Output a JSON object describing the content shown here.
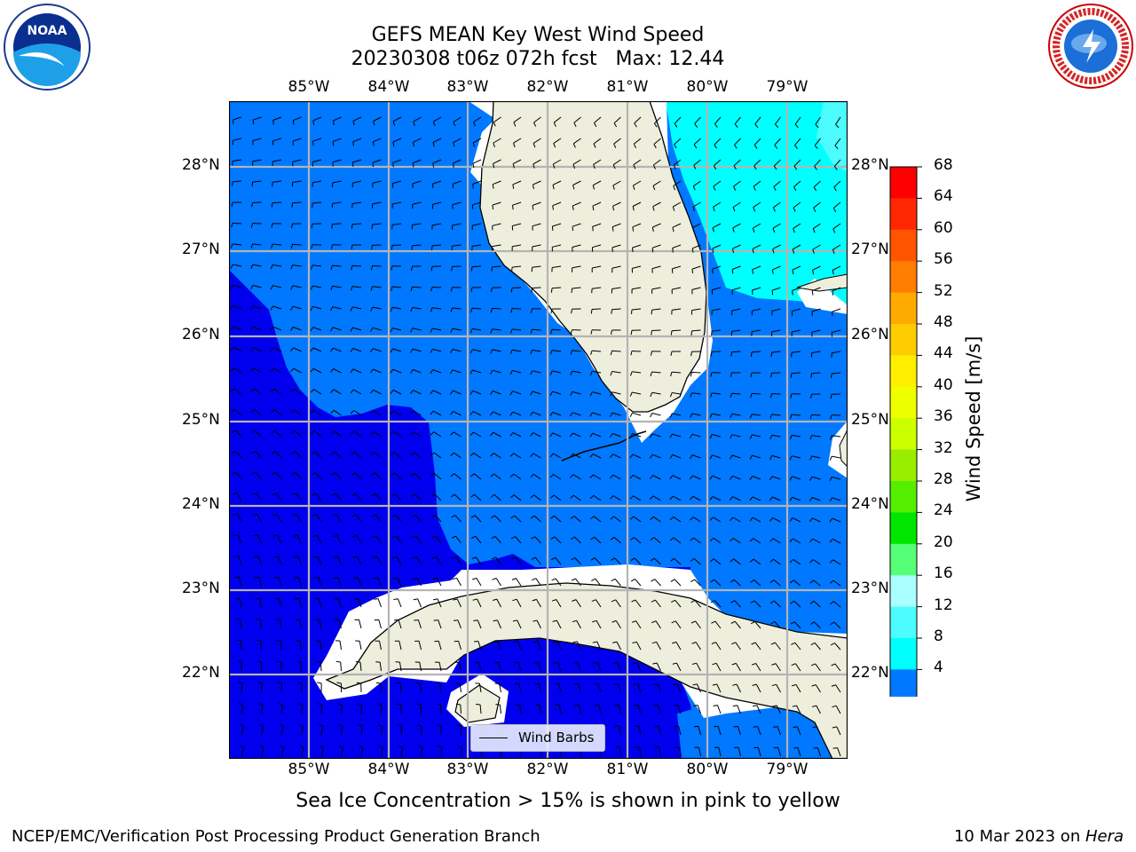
{
  "title": {
    "line1": "GEFS MEAN Key West Wind Speed",
    "line2": "20230308 t06z 072h fcst   Max: 12.44"
  },
  "logos": {
    "left": {
      "icon": "noaa-logo-icon",
      "text": "NOAA"
    },
    "right": {
      "icon": "nws-logo-icon",
      "text": "NATIONAL WEATHER SERVICE"
    }
  },
  "map": {
    "lon_labels": [
      "85°W",
      "84°W",
      "83°W",
      "82°W",
      "81°W",
      "80°W",
      "79°W"
    ],
    "lat_labels": [
      "28°N",
      "27°N",
      "26°N",
      "25°N",
      "24°N",
      "23°N",
      "22°N"
    ],
    "legend_label": "Wind Barbs",
    "colors": {
      "land": "#eeeedc",
      "dark_blue": "#0000ee",
      "mid_blue": "#0078ff",
      "cyan": "#00ffff",
      "light_cyan": "#4cfcff"
    }
  },
  "colorbar": {
    "title": "Wind Speed [m/s]",
    "ticks": [
      "68",
      "64",
      "60",
      "56",
      "52",
      "48",
      "44",
      "40",
      "36",
      "32",
      "28",
      "24",
      "20",
      "16",
      "12",
      "8",
      "4"
    ],
    "colors": [
      "#ff0000",
      "#ff2800",
      "#ff5500",
      "#ff7d00",
      "#ffaa00",
      "#ffcc00",
      "#ffee00",
      "#eeff00",
      "#ccff00",
      "#99ee00",
      "#55ee00",
      "#00e600",
      "#55ff77",
      "#aaffff",
      "#4cfcff",
      "#00ffff",
      "#0078ff"
    ],
    "under_color": "#0000ee"
  },
  "caption": "Sea Ice Concentration > 15% is shown in pink to yellow",
  "footer": {
    "left": "NCEP/EMC/Verification Post Processing Product Generation Branch",
    "right_date": "10 Mar 2023 on ",
    "right_host": "Hera"
  }
}
